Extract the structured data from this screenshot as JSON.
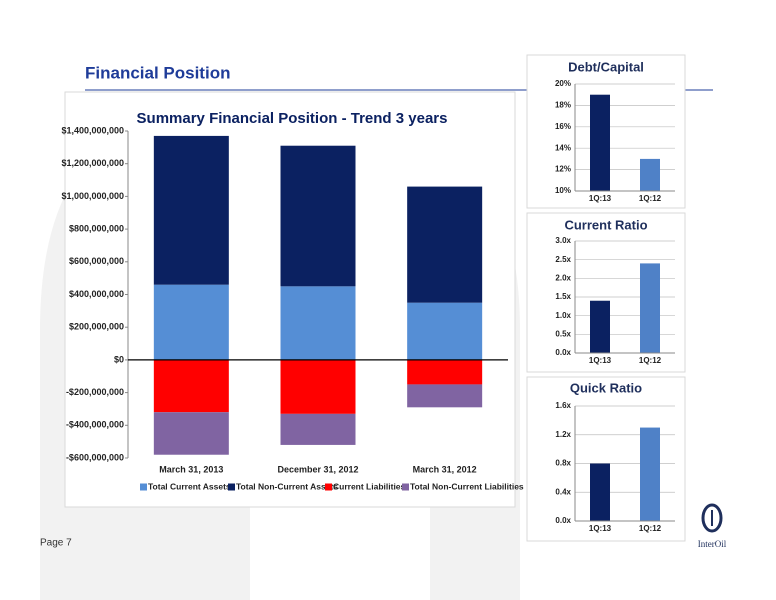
{
  "page": {
    "title": "Financial Position",
    "page_number": "Page 7",
    "logo": "InterOil"
  },
  "chart_data": [
    {
      "type": "bar",
      "stacked": true,
      "title": "Summary Financial Position - Trend 3 years",
      "categories": [
        "March 31, 2013",
        "December 31, 2012",
        "March 31, 2012"
      ],
      "series": [
        {
          "name": "Total Current Assets",
          "color": "#558ed5",
          "values": [
            460000000,
            450000000,
            350000000
          ]
        },
        {
          "name": "Total Non-Current Assets",
          "color": "#0b2161",
          "values": [
            910000000,
            860000000,
            710000000
          ]
        },
        {
          "name": "Current Liabilities",
          "color": "#ff0000",
          "values": [
            -320000000,
            -330000000,
            -150000000
          ]
        },
        {
          "name": "Total Non-Current Liabilities",
          "color": "#8064a2",
          "values": [
            -260000000,
            -190000000,
            -140000000
          ]
        }
      ],
      "ylim": [
        -600000000,
        1400000000
      ],
      "yticks": [
        {
          "value": 1400000000,
          "label": "$1,400,000,000"
        },
        {
          "value": 1200000000,
          "label": "$1,200,000,000"
        },
        {
          "value": 1000000000,
          "label": "$1,000,000,000"
        },
        {
          "value": 800000000,
          "label": "$800,000,000"
        },
        {
          "value": 600000000,
          "label": "$600,000,000"
        },
        {
          "value": 400000000,
          "label": "$400,000,000"
        },
        {
          "value": 200000000,
          "label": "$200,000,000"
        },
        {
          "value": 0,
          "label": "$0"
        },
        {
          "value": -200000000,
          "label": "-$200,000,000"
        },
        {
          "value": -400000000,
          "label": "-$400,000,000"
        },
        {
          "value": -600000000,
          "label": "-$600,000,000"
        }
      ],
      "grid": false,
      "legend": "bottom"
    },
    {
      "type": "bar",
      "title": "Debt/Capital",
      "categories": [
        "1Q:13",
        "1Q:12"
      ],
      "values": [
        19,
        13
      ],
      "colors": [
        "#0b2161",
        "#4f81c7"
      ],
      "ylim": [
        10,
        20
      ],
      "yticks": [
        {
          "value": 10,
          "label": "10%"
        },
        {
          "value": 12,
          "label": "12%"
        },
        {
          "value": 14,
          "label": "14%"
        },
        {
          "value": 16,
          "label": "16%"
        },
        {
          "value": 18,
          "label": "18%"
        },
        {
          "value": 20,
          "label": "20%"
        }
      ],
      "grid": true
    },
    {
      "type": "bar",
      "title": "Current Ratio",
      "categories": [
        "1Q:13",
        "1Q:12"
      ],
      "values": [
        1.4,
        2.4
      ],
      "colors": [
        "#0b2161",
        "#4f81c7"
      ],
      "ylim": [
        0,
        3
      ],
      "yticks": [
        {
          "value": 0,
          "label": "0.0x"
        },
        {
          "value": 0.5,
          "label": "0.5x"
        },
        {
          "value": 1,
          "label": "1.0x"
        },
        {
          "value": 1.5,
          "label": "1.5x"
        },
        {
          "value": 2,
          "label": "2.0x"
        },
        {
          "value": 2.5,
          "label": "2.5x"
        },
        {
          "value": 3,
          "label": "3.0x"
        }
      ],
      "grid": true
    },
    {
      "type": "bar",
      "title": "Quick Ratio",
      "categories": [
        "1Q:13",
        "1Q:12"
      ],
      "values": [
        0.8,
        1.3
      ],
      "colors": [
        "#0b2161",
        "#4f81c7"
      ],
      "ylim": [
        0,
        1.6
      ],
      "yticks": [
        {
          "value": 0,
          "label": "0.0x"
        },
        {
          "value": 0.4,
          "label": "0.4x"
        },
        {
          "value": 0.8,
          "label": "0.8x"
        },
        {
          "value": 1.2,
          "label": "1.2x"
        },
        {
          "value": 1.6,
          "label": "1.6x"
        }
      ],
      "grid": true
    }
  ]
}
